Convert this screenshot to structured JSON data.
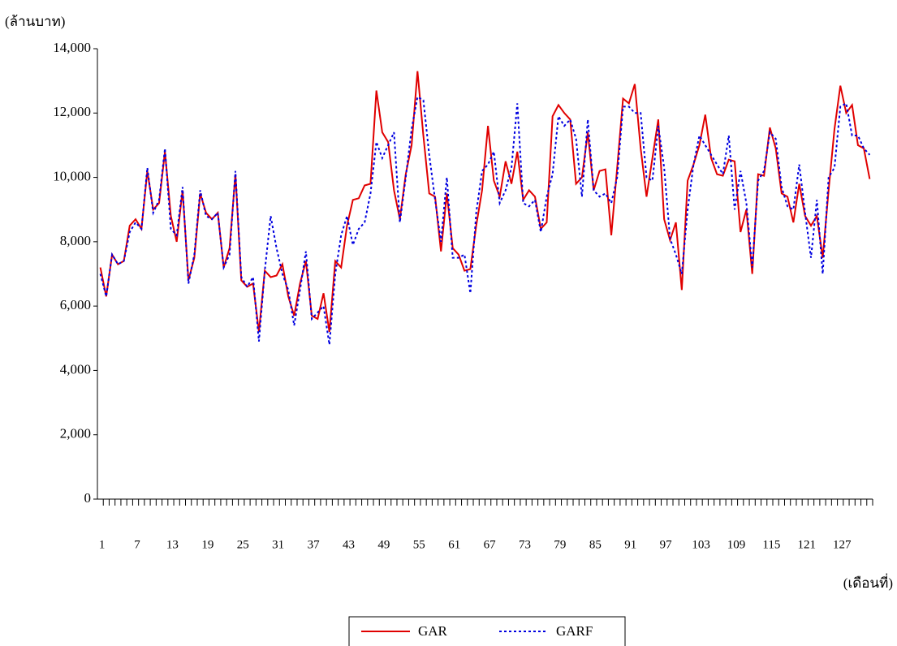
{
  "chart_data": {
    "type": "line",
    "y_label": "(ล้านบาท)",
    "x_label": "(เดือนที่)",
    "categories": [
      "1",
      null,
      null,
      null,
      null,
      null,
      "7",
      null,
      null,
      null,
      null,
      null,
      "13",
      null,
      null,
      null,
      null,
      null,
      "19",
      null,
      null,
      null,
      null,
      null,
      "25",
      null,
      null,
      null,
      null,
      null,
      "31",
      null,
      null,
      null,
      null,
      null,
      "37",
      null,
      null,
      null,
      null,
      null,
      "43",
      null,
      null,
      null,
      null,
      null,
      "49",
      null,
      null,
      null,
      null,
      null,
      "55",
      null,
      null,
      null,
      null,
      null,
      "61",
      null,
      null,
      null,
      null,
      null,
      "67",
      null,
      null,
      null,
      null,
      null,
      "73",
      null,
      null,
      null,
      null,
      null,
      "79",
      null,
      null,
      null,
      null,
      null,
      "85",
      null,
      null,
      null,
      null,
      null,
      "91",
      null,
      null,
      null,
      null,
      null,
      "97",
      null,
      null,
      null,
      null,
      null,
      "103",
      null,
      null,
      null,
      null,
      null,
      "109",
      null,
      null,
      null,
      null,
      null,
      "115",
      null,
      null,
      null,
      null,
      null,
      "121",
      null,
      null,
      null,
      null,
      null,
      "127",
      null,
      null,
      null,
      null,
      null
    ],
    "series": [
      {
        "name": "GAR",
        "color": "#e00000",
        "dash": "solid",
        "values": [
          7200,
          6300,
          7600,
          7300,
          7400,
          8500,
          8700,
          8400,
          10200,
          9000,
          9200,
          10800,
          8800,
          8000,
          9600,
          6800,
          7500,
          9500,
          8900,
          8700,
          8900,
          7200,
          7800,
          10100,
          6800,
          6600,
          6700,
          5200,
          7100,
          6900,
          6950,
          7300,
          6300,
          5700,
          6700,
          7400,
          5700,
          5600,
          6400,
          5200,
          7400,
          7200,
          8500,
          9300,
          9350,
          9750,
          9800,
          12700,
          11400,
          11100,
          9600,
          8700,
          10100,
          11000,
          13300,
          11300,
          9500,
          9400,
          7700,
          9500,
          7800,
          7600,
          7100,
          7150,
          8500,
          9600,
          11600,
          9900,
          9400,
          10500,
          9800,
          10800,
          9300,
          9600,
          9400,
          8400,
          8600,
          11900,
          12250,
          12000,
          11800,
          9800,
          10000,
          11400,
          9600,
          10200,
          10250,
          8200,
          10300,
          12450,
          12300,
          12900,
          10900,
          9400,
          10600,
          11800,
          8700,
          8050,
          8600,
          6500,
          9900,
          10400,
          11000,
          11950,
          10600,
          10100,
          10050,
          10550,
          10500,
          8300,
          9000,
          7000,
          10100,
          10050,
          11550,
          10900,
          9500,
          9400,
          8600,
          9800,
          8800,
          8500,
          8800,
          7500,
          9600,
          11500,
          12850,
          12000,
          12250,
          11000,
          10900,
          9950
        ]
      },
      {
        "name": "GARF",
        "color": "#0000e0",
        "dash": "dotted",
        "values": [
          7000,
          6300,
          7600,
          7300,
          7400,
          8300,
          8600,
          8400,
          10300,
          8900,
          9300,
          10900,
          8400,
          8200,
          9700,
          6700,
          7600,
          9600,
          8800,
          8700,
          8900,
          7200,
          7600,
          10200,
          6900,
          6600,
          6900,
          4900,
          7100,
          8800,
          7800,
          7000,
          6500,
          5400,
          6500,
          7700,
          5600,
          5800,
          6000,
          4800,
          7000,
          8200,
          8800,
          7900,
          8400,
          8600,
          9500,
          11100,
          10600,
          11000,
          11400,
          8600,
          10000,
          11500,
          12500,
          12400,
          10700,
          9300,
          8000,
          10000,
          7500,
          7500,
          7600,
          6400,
          8900,
          10200,
          10400,
          10800,
          9200,
          9600,
          10300,
          12300,
          9200,
          9100,
          9300,
          8300,
          9400,
          10100,
          11900,
          11600,
          11800,
          11200,
          9400,
          11800,
          9600,
          9400,
          9500,
          9200,
          10000,
          12200,
          12200,
          12000,
          12000,
          10000,
          9900,
          11600,
          10300,
          8100,
          7600,
          7000,
          9000,
          10400,
          11300,
          11000,
          10700,
          10400,
          10100,
          11300,
          9000,
          10200,
          9200,
          7200,
          9900,
          10200,
          11400,
          11200,
          9700,
          9100,
          9000,
          10400,
          8900,
          7500,
          9300,
          7000,
          10000,
          10300,
          12200,
          12300,
          11300,
          11300,
          10900,
          10700
        ]
      }
    ],
    "ylim": [
      0,
      14000
    ],
    "yticks": [
      0,
      {
        "value": 2000,
        "label": "2,000"
      },
      {
        "value": 4000,
        "label": "4,000"
      },
      {
        "value": 6000,
        "label": "6,000"
      },
      {
        "value": 8000,
        "label": "8,000"
      },
      {
        "value": 10000,
        "label": "10,000"
      },
      {
        "value": 12000,
        "label": "12,000"
      },
      {
        "value": 14000,
        "label": "14,000"
      }
    ],
    "legend": "bottom"
  }
}
